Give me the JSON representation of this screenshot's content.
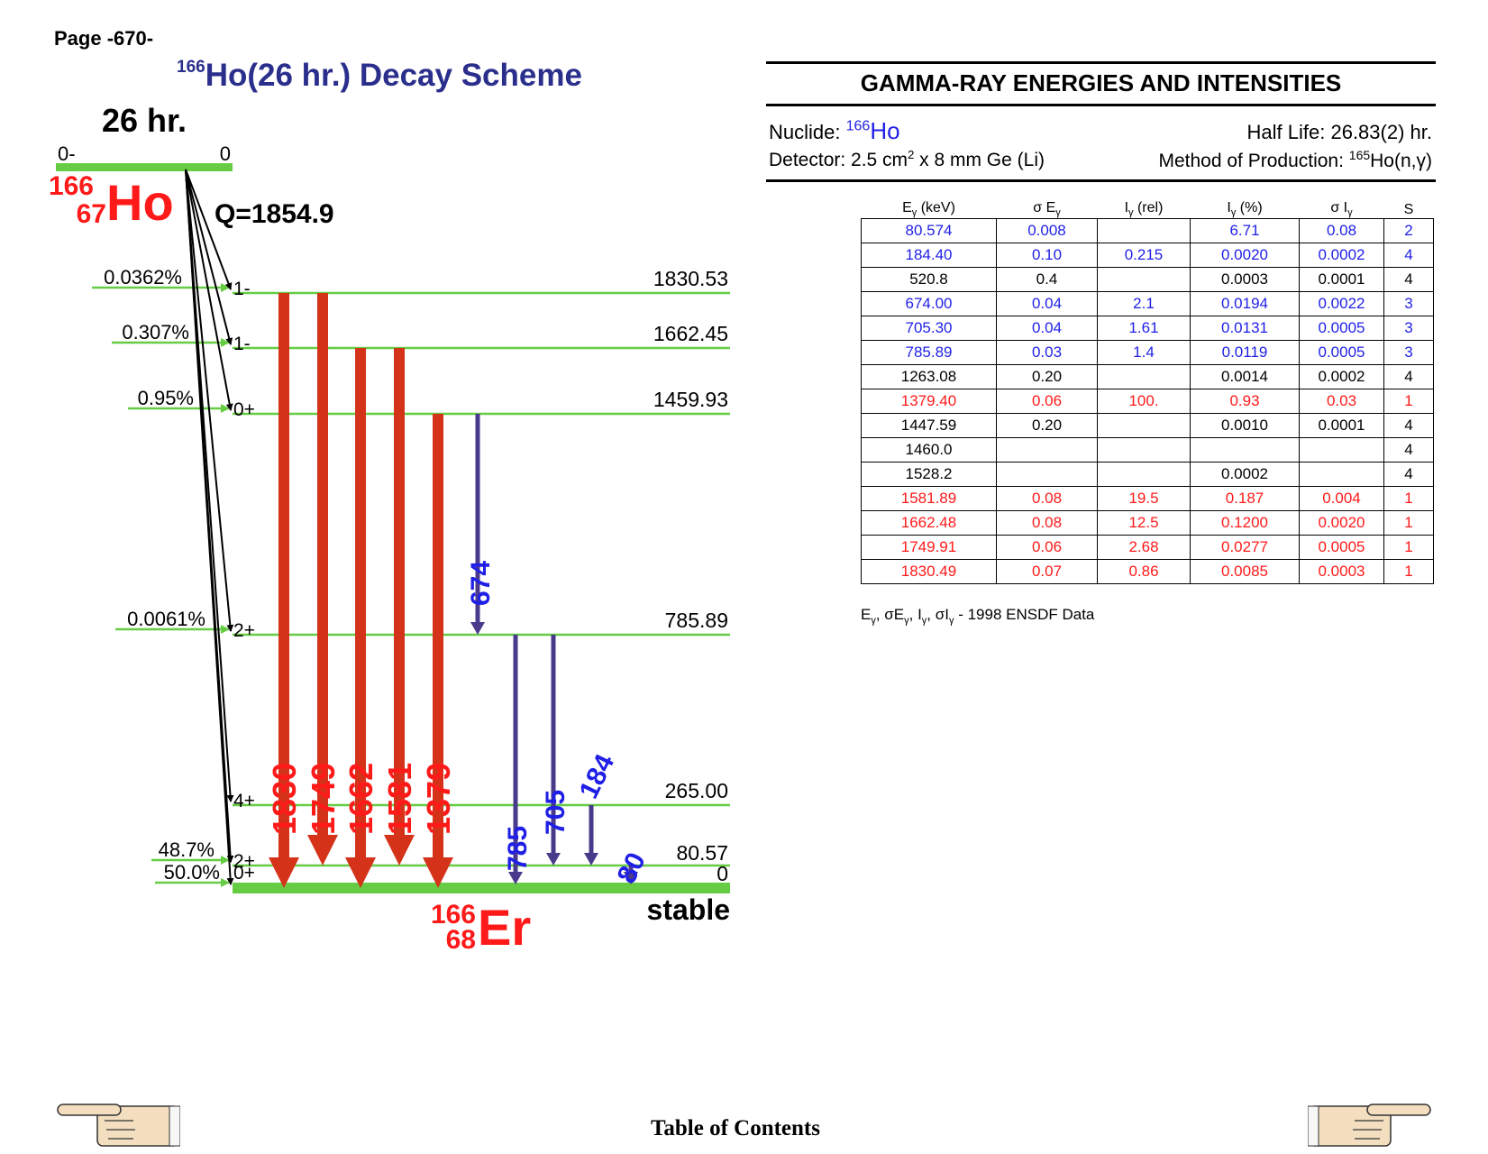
{
  "page_label": "Page -670-",
  "scheme": {
    "title_mass": "166",
    "title_text": "Ho(26 hr.) Decay Scheme",
    "parent_halflife": "26 hr.",
    "parent_spin": "0-",
    "parent_energy": "0",
    "parent_mass": "166",
    "parent_z": "67",
    "parent_symbol": "Ho",
    "q_value": "Q=1854.9",
    "daughter_mass": "166",
    "daughter_z": "68",
    "daughter_symbol": "Er",
    "stable_label": "stable",
    "levels": [
      {
        "energy": "1830.53",
        "spin": "1-",
        "beta": "0.0362%"
      },
      {
        "energy": "1662.45",
        "spin": "1-",
        "beta": "0.307%"
      },
      {
        "energy": "1459.93",
        "spin": "0+",
        "beta": "0.95%"
      },
      {
        "energy": "785.89",
        "spin": "2+",
        "beta": "0.0061%"
      },
      {
        "energy": "265.00",
        "spin": "4+",
        "beta": ""
      },
      {
        "energy": "80.57",
        "spin": "2+",
        "beta": "48.7%"
      },
      {
        "energy": "0",
        "spin": "0+",
        "beta": "50.0%"
      }
    ],
    "transition_labels": {
      "t1830": "1830",
      "t1749": "1749",
      "t1662": "1662",
      "t1581": "1581",
      "t1379": "1379",
      "t674": "674",
      "t785": "785",
      "t705": "705",
      "t184": "184",
      "t80": "80"
    },
    "colors": {
      "level": "#66cc44",
      "strong": "#d4331a",
      "weak": "#4a3a8c",
      "blue_label": "#1f1fe6",
      "red_label": "#ff1a1a",
      "title": "#2b2f8c"
    }
  },
  "table": {
    "title": "GAMMA-RAY ENERGIES AND INTENSITIES",
    "nuclide_label": "Nuclide:",
    "nuclide_mass": "166",
    "nuclide_symbol": "Ho",
    "half_life": "Half Life: 26.83(2) hr.",
    "detector_prefix": "Detector: 2.5 cm",
    "detector_sup": "2",
    "detector_suffix": " x 8 mm Ge (Li)",
    "method_prefix": "Method of Production: ",
    "method_mass": "165",
    "method_suffix": "Ho(n,γ)",
    "headers": [
      "E",
      "σ E",
      "I",
      "I",
      "σ I",
      "S"
    ],
    "header_units": [
      "(keV)",
      "",
      "(rel)",
      "(%)",
      "",
      ""
    ],
    "rows": [
      {
        "color": "blue",
        "cells": [
          "80.574",
          "0.008",
          "",
          "6.71",
          "0.08",
          "2"
        ]
      },
      {
        "color": "blue",
        "cells": [
          "184.40",
          "0.10",
          "0.215",
          "0.0020",
          "0.0002",
          "4"
        ]
      },
      {
        "color": "black",
        "cells": [
          "520.8",
          "0.4",
          "",
          "0.0003",
          "0.0001",
          "4"
        ]
      },
      {
        "color": "blue",
        "cells": [
          "674.00",
          "0.04",
          "2.1",
          "0.0194",
          "0.0022",
          "3"
        ]
      },
      {
        "color": "blue",
        "cells": [
          "705.30",
          "0.04",
          "1.61",
          "0.0131",
          "0.0005",
          "3"
        ]
      },
      {
        "color": "blue",
        "cells": [
          "785.89",
          "0.03",
          "1.4",
          "0.0119",
          "0.0005",
          "3"
        ]
      },
      {
        "color": "black",
        "cells": [
          "1263.08",
          "0.20",
          "",
          "0.0014",
          "0.0002",
          "4"
        ]
      },
      {
        "color": "red",
        "cells": [
          "1379.40",
          "0.06",
          "100.",
          "0.93",
          "0.03",
          "1"
        ]
      },
      {
        "color": "black",
        "cells": [
          "1447.59",
          "0.20",
          "",
          "0.0010",
          "0.0001",
          "4"
        ]
      },
      {
        "color": "black",
        "cells": [
          "1460.0",
          "",
          "",
          "",
          "",
          "4"
        ]
      },
      {
        "color": "black",
        "cells": [
          "1528.2",
          "",
          "",
          "0.0002",
          "",
          "4"
        ]
      },
      {
        "color": "red",
        "cells": [
          "1581.89",
          "0.08",
          "19.5",
          "0.187",
          "0.004",
          "1"
        ]
      },
      {
        "color": "red",
        "cells": [
          "1662.48",
          "0.08",
          "12.5",
          "0.1200",
          "0.0020",
          "1"
        ]
      },
      {
        "color": "red",
        "cells": [
          "1749.91",
          "0.06",
          "2.68",
          "0.0277",
          "0.0005",
          "1"
        ]
      },
      {
        "color": "red",
        "cells": [
          "1830.49",
          "0.07",
          "0.86",
          "0.0085",
          "0.0003",
          "1"
        ]
      }
    ],
    "note_suffix": " - 1998 ENSDF Data",
    "row_colors": {
      "blue": "#1f1fe6",
      "red": "#ff1a1a",
      "black": "#000000"
    }
  },
  "footer": {
    "toc_label": "Table of Contents",
    "prev_icon": "pointing-hand-left",
    "next_icon": "pointing-hand-right"
  }
}
